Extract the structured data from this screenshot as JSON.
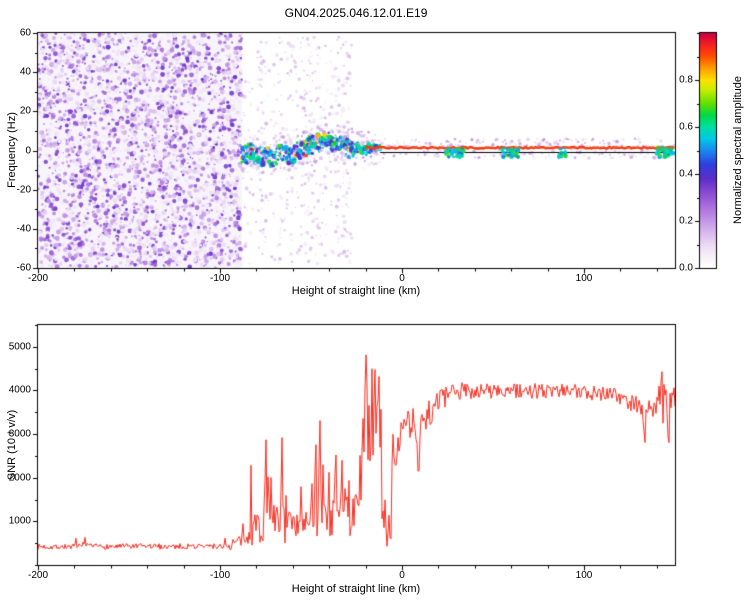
{
  "title": "GN04.2025.046.12.01.E19",
  "chart_data": [
    {
      "type": "heatmap",
      "title": "GN04.2025.046.12.01.E19",
      "xlabel": "Height of straight line (km)",
      "ylabel": "Frequency (Hz)",
      "xlim": [
        -200,
        150
      ],
      "ylim": [
        -60,
        60
      ],
      "xticks": [
        -200,
        -100,
        0,
        100
      ],
      "xtick_minor_step": 20,
      "yticks": [
        -60,
        -40,
        -20,
        0,
        20,
        40,
        60
      ],
      "ytick_minor_step": 10,
      "colorbar": {
        "label": "Normalized spectral amplitude",
        "ticks": [
          "0.0",
          "0.2",
          "0.4",
          "0.6",
          "0.8"
        ],
        "tick_values": [
          0,
          0.2,
          0.4,
          0.6,
          0.8
        ],
        "minor_step": 0.1,
        "range": [
          0,
          1
        ]
      },
      "colormap_stops": [
        [
          0.0,
          "#ffffff"
        ],
        [
          0.08,
          "#f0e4f6"
        ],
        [
          0.16,
          "#d4b2ec"
        ],
        [
          0.24,
          "#b27ce0"
        ],
        [
          0.32,
          "#8a4ad4"
        ],
        [
          0.38,
          "#5c2ec8"
        ],
        [
          0.44,
          "#2e3ee0"
        ],
        [
          0.5,
          "#1a8af0"
        ],
        [
          0.55,
          "#00c8e8"
        ],
        [
          0.6,
          "#00e0a0"
        ],
        [
          0.65,
          "#00d848"
        ],
        [
          0.7,
          "#60e000"
        ],
        [
          0.76,
          "#c8ee00"
        ],
        [
          0.8,
          "#ffe000"
        ],
        [
          0.85,
          "#ffa000"
        ],
        [
          0.9,
          "#ff5000"
        ],
        [
          0.95,
          "#f52020"
        ],
        [
          1.0,
          "#cc0044"
        ]
      ],
      "features": {
        "noise_field": {
          "x_range": [
            -200,
            -88
          ],
          "freq_range": [
            -60,
            60
          ],
          "amplitude_range": [
            0.05,
            0.38
          ]
        },
        "sparse_columns_x": [
          -85,
          -81,
          -77,
          -73,
          -68,
          -62,
          -58,
          -53,
          -48,
          -44,
          -40,
          -37,
          -34,
          -30
        ],
        "signal_band": {
          "x_start": -88,
          "freq_center": 0,
          "scatter_spread_hz": 4.5,
          "solid_line_from_x": -20,
          "solid_line_freq": 1.4,
          "solid_line_amplitude": 0.94
        },
        "green_patches_x": [
          [
            24,
            34
          ],
          [
            55,
            64
          ],
          [
            86,
            90
          ],
          [
            140,
            149
          ]
        ],
        "zero_line_from_x": -12
      },
      "seed": 42
    },
    {
      "type": "line",
      "xlabel": "Height of straight line (km)",
      "ylabel": "SNR (10 * v/v)",
      "xlim": [
        -200,
        150
      ],
      "ylim": [
        0,
        5500
      ],
      "xticks": [
        -200,
        -100,
        0,
        100
      ],
      "xtick_minor_step": 20,
      "yticks": [
        1000,
        2000,
        3000,
        4000,
        5000
      ],
      "ytick_minor_step": 500,
      "line_color": "#f83023",
      "segments": [
        {
          "x0": -200,
          "x1": -95,
          "y0": 420,
          "y1": 430,
          "noise": 130,
          "spike_prob": 0.02,
          "spike_amp": 280
        },
        {
          "x0": -95,
          "x1": -84,
          "y0": 460,
          "y1": 620,
          "noise": 300,
          "spike_prob": 0.05,
          "spike_amp": 450
        },
        {
          "x0": -84,
          "x1": -61,
          "y0": 900,
          "y1": 950,
          "noise": 900,
          "spike_prob": 0.18,
          "spike_amp": 1700
        },
        {
          "x0": -61,
          "x1": -49,
          "y0": 800,
          "y1": 900,
          "noise": 700,
          "spike_prob": 0.12,
          "spike_amp": 1100
        },
        {
          "x0": -49,
          "x1": -40,
          "y0": 1050,
          "y1": 1250,
          "noise": 1000,
          "spike_prob": 0.15,
          "spike_amp": 1700
        },
        {
          "x0": -40,
          "x1": -29,
          "y0": 1050,
          "y1": 1150,
          "noise": 900,
          "spike_prob": 0.12,
          "spike_amp": 1200
        },
        {
          "x0": -29,
          "x1": -22,
          "y0": 850,
          "y1": 1900,
          "noise": 800,
          "spike_prob": 0.1,
          "spike_amp": 900
        },
        {
          "x0": -22,
          "x1": -16,
          "y0": 2700,
          "y1": 3200,
          "noise": 1400,
          "spike_prob": 0.2,
          "spike_amp": 1500
        },
        {
          "x0": -16,
          "x1": -11,
          "y0": 3000,
          "y1": 2400,
          "noise": 1300,
          "spike_prob": 0.1,
          "spike_amp": 1400
        },
        {
          "x0": -11,
          "x1": -6,
          "y0": 1300,
          "y1": 850,
          "noise": 700,
          "spike_prob": 0.05,
          "spike_amp": 500
        },
        {
          "x0": -6,
          "x1": 1,
          "y0": 2500,
          "y1": 3000,
          "noise": 900,
          "spike_prob": 0.05,
          "spike_amp": 600
        },
        {
          "x0": 1,
          "x1": 17,
          "y0": 3000,
          "y1": 3600,
          "noise": 900,
          "spike_prob": 0.05,
          "spike_amp": 500
        },
        {
          "x0": 17,
          "x1": 32,
          "y0": 3700,
          "y1": 4000,
          "noise": 480,
          "spike_prob": 0.03,
          "spike_amp": 300
        },
        {
          "x0": 32,
          "x1": 118,
          "y0": 4000,
          "y1": 3950,
          "noise": 380,
          "spike_prob": 0.02,
          "spike_amp": 260
        },
        {
          "x0": 118,
          "x1": 139,
          "y0": 3850,
          "y1": 3550,
          "noise": 420,
          "spike_prob": 0.03,
          "spike_amp": 300
        },
        {
          "x0": 139,
          "x1": 150,
          "y0": 3650,
          "y1": 3850,
          "noise": 520,
          "spike_prob": 0.1,
          "spike_amp": 500
        }
      ],
      "spikes": [
        [
          -74.5,
          2870
        ],
        [
          -66,
          2920
        ],
        [
          -45,
          3310
        ],
        [
          -36.5,
          2520
        ],
        [
          -33,
          2400
        ],
        [
          -25,
          1520
        ],
        [
          -20,
          5480
        ],
        [
          -19,
          4150
        ],
        [
          -15,
          4480
        ],
        [
          -12.5,
          4320
        ],
        [
          -8,
          430
        ],
        [
          9,
          2150
        ],
        [
          133,
          3060
        ],
        [
          143,
          4430
        ],
        [
          146,
          2960
        ]
      ],
      "seed": 7
    }
  ]
}
